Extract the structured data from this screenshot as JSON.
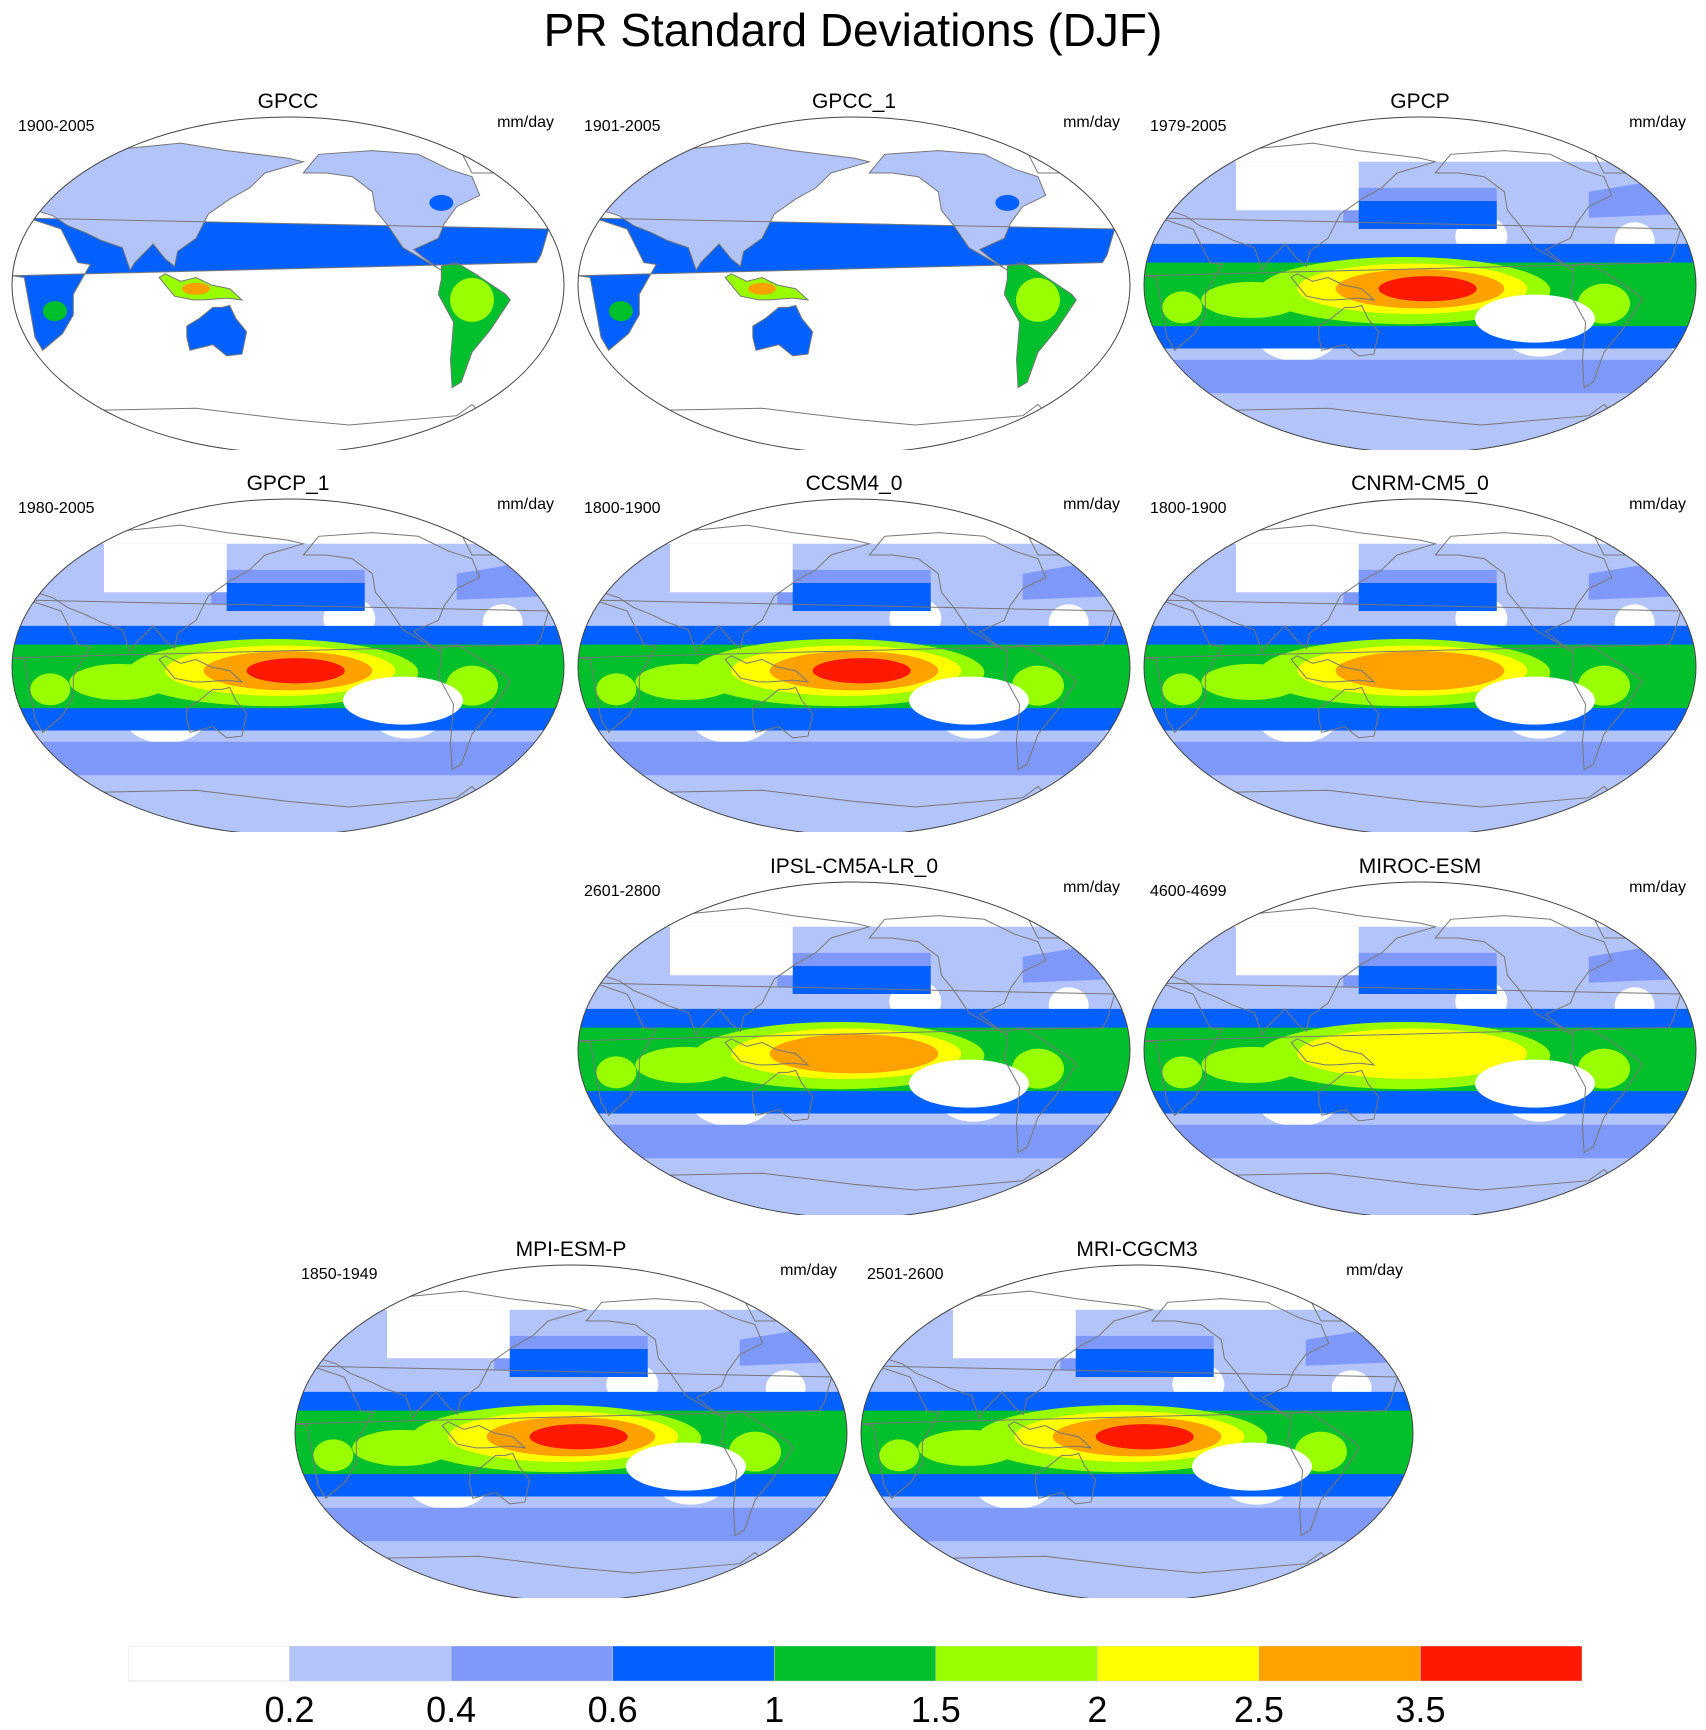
{
  "title": "PR Standard Deviations (DJF)",
  "units": "mm/day",
  "panels": [
    {
      "name": "GPCC",
      "period": "1900-2005",
      "style": "land"
    },
    {
      "name": "GPCC_1",
      "period": "1901-2005",
      "style": "land"
    },
    {
      "name": "GPCP",
      "period": "1979-2005",
      "style": "full",
      "peak": 3.6
    },
    {
      "name": "GPCP_1",
      "period": "1980-2005",
      "style": "full",
      "peak": 3.6
    },
    {
      "name": "CCSM4_0",
      "period": "1800-1900",
      "style": "full",
      "peak": 3.6
    },
    {
      "name": "CNRM-CM5_0",
      "period": "1800-1900",
      "style": "full",
      "peak": 3.0
    },
    {
      "name": "IPSL-CM5A-LR_0",
      "period": "2601-2800",
      "style": "full",
      "peak": 2.6
    },
    {
      "name": "MIROC-ESM",
      "period": "4600-4699",
      "style": "full",
      "peak": 2.2
    },
    {
      "name": "MPI-ESM-P",
      "period": "1850-1949",
      "style": "full",
      "peak": 3.6
    },
    {
      "name": "MRI-CGCM3",
      "period": "2501-2600",
      "style": "full",
      "peak": 3.6
    }
  ],
  "colorbar": {
    "colors": [
      "#ffffff",
      "#b3c4fb",
      "#7f99fa",
      "#0261fe",
      "#02bf2c",
      "#99ff00",
      "#ffff00",
      "#ffa200",
      "#ff1900"
    ],
    "labels": [
      "0.2",
      "0.4",
      "0.6",
      "1",
      "1.5",
      "2",
      "2.5",
      "3.5"
    ],
    "levels": [
      0.2,
      0.4,
      0.6,
      1,
      1.5,
      2,
      2.5,
      3.5
    ]
  }
}
